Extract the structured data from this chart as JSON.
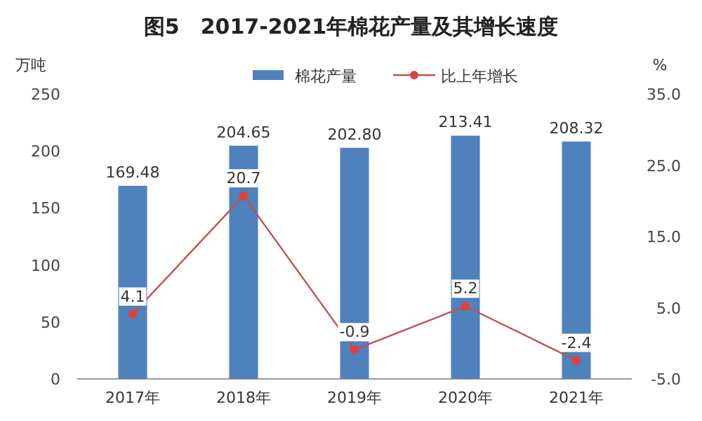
{
  "chart_data": {
    "type": "bar",
    "title": "图5　2017-2021年棉花产量及其增长速度",
    "ylabel": "万吨",
    "y2label": "%",
    "categories": [
      "2017年",
      "2018年",
      "2019年",
      "2020年",
      "2021年"
    ],
    "series": [
      {
        "name": "棉花产量",
        "color": "#4f81bd",
        "values": [
          169.48,
          204.65,
          202.8,
          213.41,
          208.32
        ],
        "value_labels": [
          "169.48",
          "204.65",
          "202.80",
          "213.41",
          "208.32"
        ]
      },
      {
        "name": "比上年增长",
        "type": "line",
        "axis": "y2",
        "color": "#c0504d",
        "marker": "circle",
        "values": [
          4.1,
          20.7,
          -0.9,
          5.2,
          -2.4
        ],
        "value_labels": [
          "4.1",
          "20.7",
          "-0.9",
          "5.2",
          "-2.4"
        ]
      }
    ],
    "ylim": [
      0,
      250
    ],
    "yticks": [
      0,
      50,
      100,
      150,
      200,
      250
    ],
    "y2lim": [
      -5,
      35
    ],
    "y2ticks": [
      {
        "value": -5,
        "label": "-5.0"
      },
      {
        "value": 5,
        "label": "5.0"
      },
      {
        "value": 15,
        "label": "15.0"
      },
      {
        "value": 25,
        "label": "25.0"
      },
      {
        "value": 35,
        "label": "35.0"
      }
    ],
    "grid": false,
    "legend": "top"
  }
}
